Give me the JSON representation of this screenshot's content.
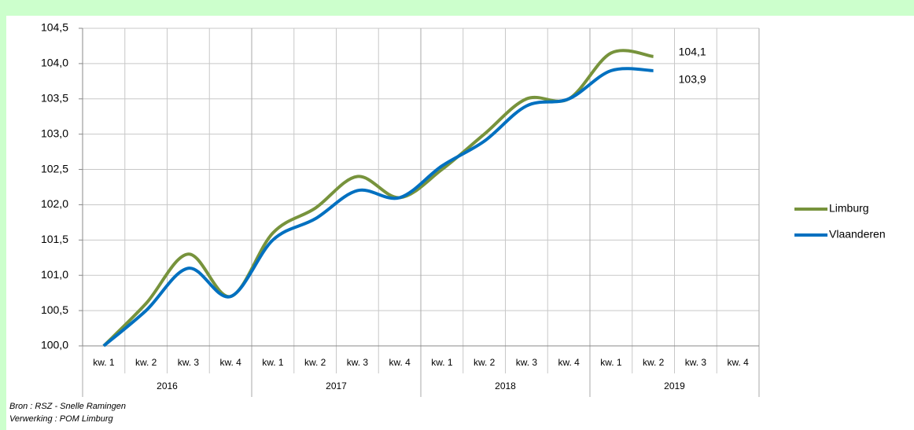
{
  "chart_data": {
    "type": "line",
    "categories": [
      "kw. 1",
      "kw. 2",
      "kw. 3",
      "kw. 4",
      "kw. 1",
      "kw. 2",
      "kw. 3",
      "kw. 4",
      "kw. 1",
      "kw. 2",
      "kw. 3",
      "kw. 4",
      "kw. 1",
      "kw. 2",
      "kw. 3",
      "kw. 4"
    ],
    "groups": [
      "2016",
      "2017",
      "2018",
      "2019"
    ],
    "series": [
      {
        "name": "Limburg",
        "color": "#77933c",
        "values": [
          100.0,
          100.6,
          101.3,
          100.7,
          101.6,
          101.95,
          102.4,
          102.1,
          102.5,
          103.0,
          103.5,
          103.5,
          104.15,
          104.1,
          null,
          null
        ],
        "value_labels": [
          null,
          null,
          null,
          null,
          null,
          null,
          null,
          null,
          null,
          null,
          null,
          null,
          null,
          "104,1",
          null,
          null
        ]
      },
      {
        "name": "Vlaanderen",
        "color": "#0070c0",
        "values": [
          100.0,
          100.5,
          101.1,
          100.7,
          101.5,
          101.8,
          102.2,
          102.1,
          102.55,
          102.9,
          103.4,
          103.5,
          103.9,
          103.9,
          null,
          null
        ],
        "value_labels": [
          null,
          null,
          null,
          null,
          null,
          null,
          null,
          null,
          null,
          null,
          null,
          null,
          null,
          "103,9",
          null,
          null
        ]
      }
    ],
    "ylim": [
      100,
      104.5
    ],
    "yticks": [
      {
        "value": 100,
        "label": "100,0"
      },
      {
        "value": 100.5,
        "label": "100,5"
      },
      {
        "value": 101,
        "label": "101,0"
      },
      {
        "value": 101.5,
        "label": "101,5"
      },
      {
        "value": 102,
        "label": "102,0"
      },
      {
        "value": 102.5,
        "label": "102,5"
      },
      {
        "value": 103,
        "label": "103,0"
      },
      {
        "value": 103.5,
        "label": "103,5"
      },
      {
        "value": 104,
        "label": "104,0"
      },
      {
        "value": 104.5,
        "label": "104,5"
      }
    ],
    "grid": true,
    "legend": "right",
    "notes": [
      "Bron : RSZ - Snelle Ramingen",
      "Verwerking : POM Limburg"
    ]
  }
}
